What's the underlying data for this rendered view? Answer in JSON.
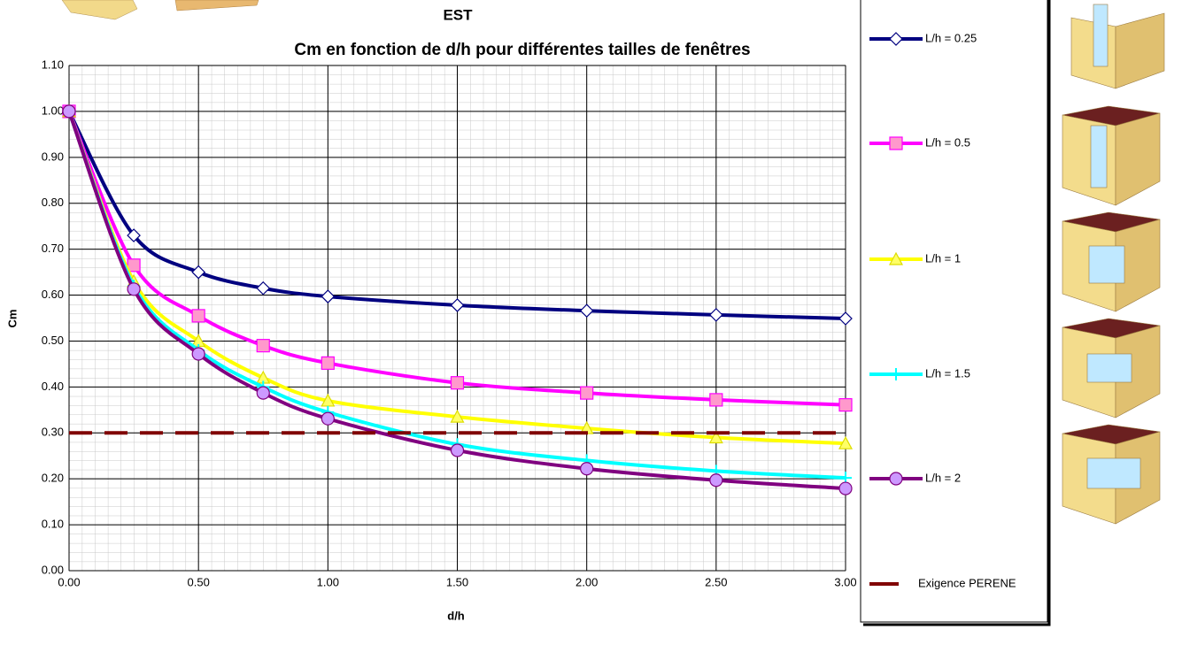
{
  "chart_data": {
    "type": "line",
    "title": "EST",
    "subtitle": "Cm en fonction de d/h pour différentes tailles de fenêtres",
    "x_label": "d/h",
    "y_label": "Cm",
    "x": [
      0,
      0.25,
      0.5,
      0.75,
      1,
      1.5,
      2,
      2.5,
      3
    ],
    "xlim": [
      0,
      3
    ],
    "ylim": [
      0,
      1.1
    ],
    "xticks": [
      {
        "value": 0,
        "label": "0.00"
      },
      {
        "value": 0.5,
        "label": "0.50"
      },
      {
        "value": 1,
        "label": "1.00"
      },
      {
        "value": 1.5,
        "label": "1.50"
      },
      {
        "value": 2,
        "label": "2.00"
      },
      {
        "value": 2.5,
        "label": "2.50"
      },
      {
        "value": 3,
        "label": "3.00"
      }
    ],
    "yticks": [
      {
        "value": 0,
        "label": "0.00"
      },
      {
        "value": 0.1,
        "label": "0.10"
      },
      {
        "value": 0.2,
        "label": "0.20"
      },
      {
        "value": 0.3,
        "label": "0.30"
      },
      {
        "value": 0.4,
        "label": "0.40"
      },
      {
        "value": 0.5,
        "label": "0.50"
      },
      {
        "value": 0.6,
        "label": "0.60"
      },
      {
        "value": 0.7,
        "label": "0.70"
      },
      {
        "value": 0.8,
        "label": "0.80"
      },
      {
        "value": 0.9,
        "label": "0.90"
      },
      {
        "value": 1,
        "label": "1.00"
      },
      {
        "value": 1.1,
        "label": "1.10"
      }
    ],
    "grid": true,
    "legend": "right",
    "series": [
      {
        "name": "L/h = 0.25",
        "color": "#000080",
        "marker": "diamond",
        "marker_fill": "#ffffff",
        "values": [
          1.0,
          0.73,
          0.65,
          0.615,
          0.597,
          0.578,
          0.566,
          0.557,
          0.549
        ]
      },
      {
        "name": "L/h = 0.5",
        "color": "#ff00ff",
        "marker": "square",
        "marker_fill": "#ff99cc",
        "values": [
          1.0,
          0.665,
          0.555,
          0.49,
          0.452,
          0.409,
          0.387,
          0.372,
          0.361
        ]
      },
      {
        "name": "L/h = 1",
        "color": "#ffff00",
        "marker": "triangle",
        "marker_fill": "#ffff66",
        "values": [
          1.0,
          0.63,
          0.5,
          0.42,
          0.37,
          0.335,
          0.31,
          0.29,
          0.277
        ]
      },
      {
        "name": "L/h = 1.5",
        "color": "#00ffff",
        "marker": "plus",
        "marker_fill": "#ccffff",
        "values": [
          1.0,
          0.62,
          0.48,
          0.4,
          0.345,
          0.275,
          0.24,
          0.217,
          0.202
        ]
      },
      {
        "name": "L/h = 2",
        "color": "#800080",
        "marker": "circle",
        "marker_fill": "#cc99ff",
        "values": [
          1.0,
          0.613,
          0.472,
          0.387,
          0.331,
          0.262,
          0.222,
          0.197,
          0.179
        ]
      },
      {
        "name": "Exigence PERENE",
        "color": "#800000",
        "dashed": true,
        "x": [
          0,
          3
        ],
        "values": [
          0.3,
          0.3
        ]
      }
    ]
  }
}
